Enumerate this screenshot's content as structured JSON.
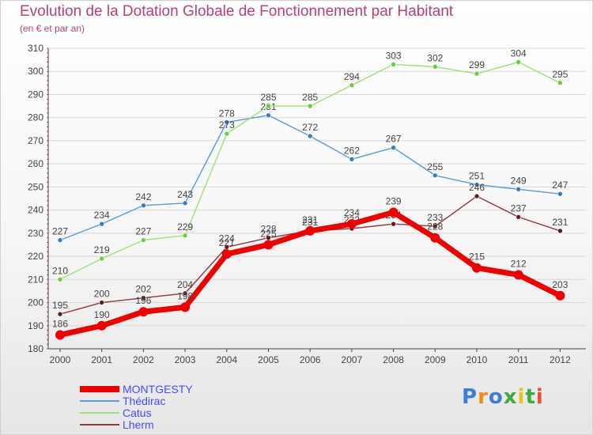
{
  "title": "Evolution de la Dotation Globale de Fonctionnement par Habitant",
  "subtitle": "(en € et par an)",
  "brand": {
    "text": "Proxiti",
    "letter_colors": [
      "#3c7dd9",
      "#f08a1c",
      "#3c7dd9",
      "#3caa3c",
      "#e8c21a",
      "#3caa3c",
      "#e84c3c"
    ]
  },
  "chart_data": {
    "type": "line",
    "title": "Evolution de la Dotation Globale de Fonctionnement par Habitant",
    "subtitle": "(en € et par an)",
    "xlabel": "",
    "ylabel": "",
    "x": [
      "2000",
      "2001",
      "2002",
      "2003",
      "2004",
      "2005",
      "2006",
      "2007",
      "2008",
      "2009",
      "2010",
      "2011",
      "2012"
    ],
    "ylim": [
      180,
      310
    ],
    "yticks": [
      180,
      190,
      200,
      210,
      220,
      230,
      240,
      250,
      260,
      270,
      280,
      290,
      300,
      310
    ],
    "grid": "horizontal",
    "legend_position": "bottom-left",
    "series": [
      {
        "name": "Thédirac",
        "color": "#5b9bd5",
        "dot": "#3a7cc0",
        "width": 1.4,
        "marker": 3,
        "values": [
          227,
          234,
          242,
          243,
          278,
          281,
          272,
          262,
          267,
          255,
          251,
          249,
          247
        ]
      },
      {
        "name": "Catus",
        "color": "#9ee07a",
        "dot": "#6ccb3e",
        "width": 1.4,
        "marker": 3,
        "values": [
          210,
          219,
          227,
          229,
          273,
          285,
          285,
          294,
          303,
          302,
          299,
          304,
          295
        ]
      },
      {
        "name": "Lherm",
        "color": "#8b3a3a",
        "dot": "#5e1f1f",
        "width": 1.4,
        "marker": 3,
        "values": [
          195,
          200,
          202,
          204,
          224,
          228,
          231,
          232,
          234,
          233,
          246,
          237,
          231
        ]
      },
      {
        "name": "MONTGESTY",
        "color": "#ee0000",
        "dot": "#ee0000",
        "width": 7,
        "marker": 6,
        "values": [
          186,
          190,
          196,
          198,
          221,
          225,
          231,
          234,
          239,
          228,
          215,
          212,
          203
        ]
      }
    ],
    "legend_order": [
      "MONTGESTY",
      "Thédirac",
      "Catus",
      "Lherm"
    ],
    "legend_text_colors": {
      "MONTGESTY": "#4a4aff",
      "Thédirac": "#4a4aff",
      "Catus": "#4a4aff",
      "Lherm": "#4a4aff"
    }
  }
}
